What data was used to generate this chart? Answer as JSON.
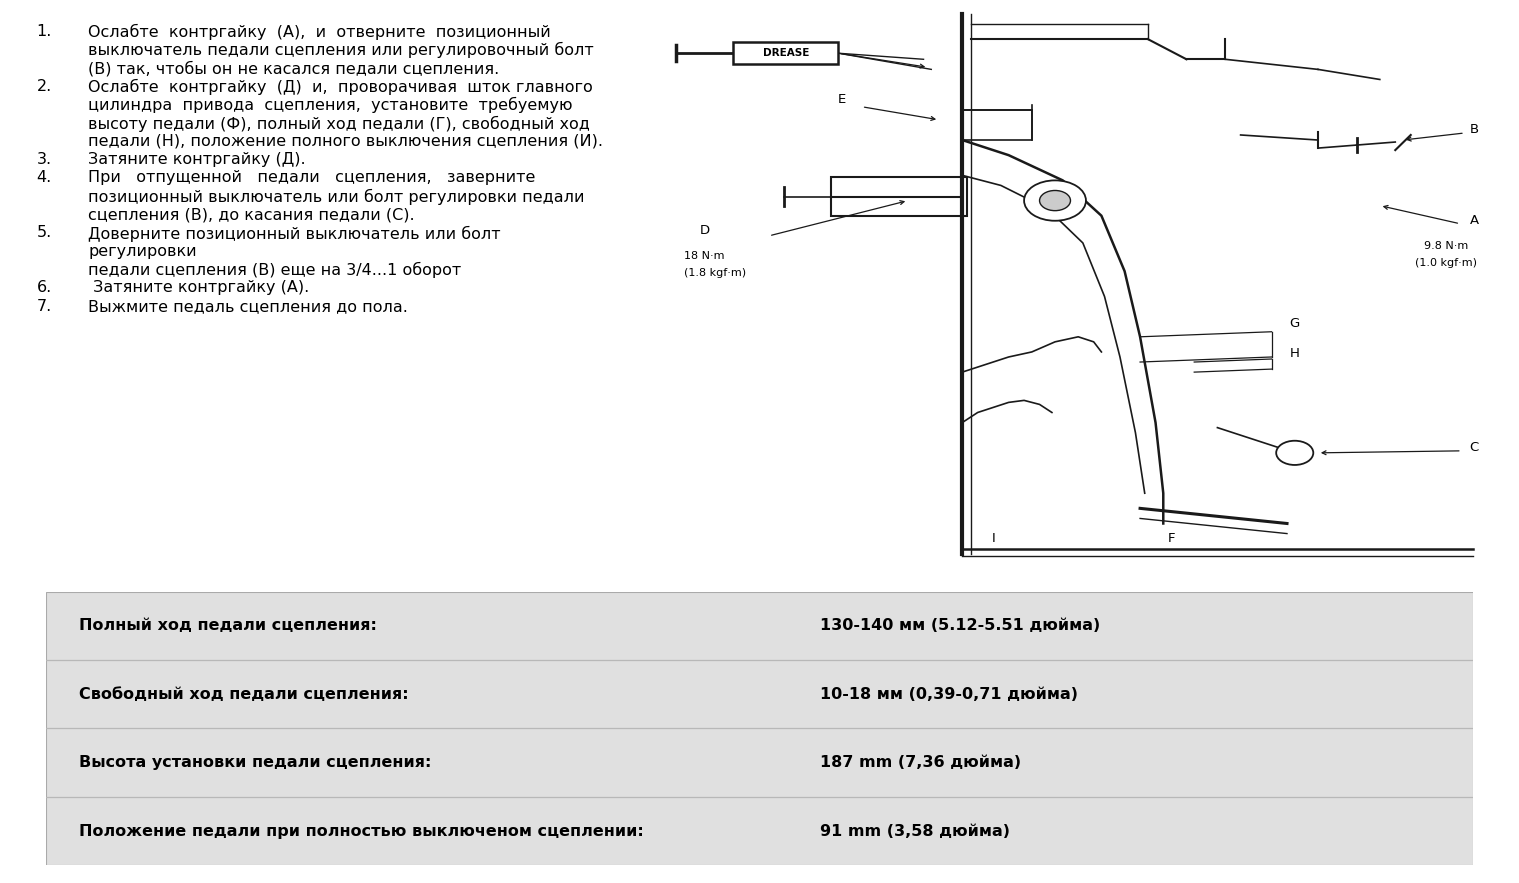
{
  "bg_color": "#ffffff",
  "text_color": "#000000",
  "table_bg": "#e0e0e0",
  "instructions": [
    {
      "num": "1.",
      "lines": [
        "Ослабте  контргайку  (А),  и  отверните  позиционный",
        "выключатель педали сцепления или регулировочный болт",
        "(В) так, чтобы он не касался педали сцепления."
      ]
    },
    {
      "num": "2.",
      "lines": [
        "Ослабте  контргайку  (Д)  и,  проворачивая  шток главного",
        "цилиндра  привода  сцепления,  установите  требуемую",
        "высоту педали (Ф), полный ход педали (Г), свободный ход",
        "педали (Н), положение полного выключения сцепления (И)."
      ]
    },
    {
      "num": "3.",
      "lines": [
        "Затяните контргайку (Д)."
      ]
    },
    {
      "num": "4.",
      "lines": [
        "При   отпущенной   педали   сцепления,   заверните",
        "позиционный выключатель или болт регулировки педали",
        "сцепления (В), до касания педали (С)."
      ]
    },
    {
      "num": "5.",
      "lines": [
        "Доверните позиционный выключатель или болт",
        "регулировки",
        "педали сцепления (В) еще на 3/4...1 оборот"
      ]
    },
    {
      "num": "6.",
      "lines": [
        " Затяните контргайку (А)."
      ]
    },
    {
      "num": "7.",
      "lines": [
        "Выжмите педаль сцепления до пола."
      ]
    }
  ],
  "table_rows": [
    {
      "label": "Полный ход педали сцепления:",
      "value": "130-140 мм (5.12-5.51 дюйма)"
    },
    {
      "label": "Свободный ход педали сцепления:",
      "value": "10-18 мм (0,39-0,71 дюйма)"
    },
    {
      "label": "Высота установки педали сцепления:",
      "value": "187 mm (7,36 дюйма)"
    },
    {
      "label": "Положение педали при полностью выключеном сцеплении:",
      "value": "91 mm (3,58 дюйма)"
    }
  ],
  "diagram_labels": {
    "drease": "DREASE",
    "E": "E",
    "B": "B",
    "A": "A",
    "D": "D",
    "G": "G",
    "H": "H",
    "C": "C",
    "F": "F",
    "I": "I",
    "torque_A": "9.8 N·m\n(1.0 kgf·m)",
    "torque_D": "18 N·m\n(1.8 kgf·m)"
  }
}
